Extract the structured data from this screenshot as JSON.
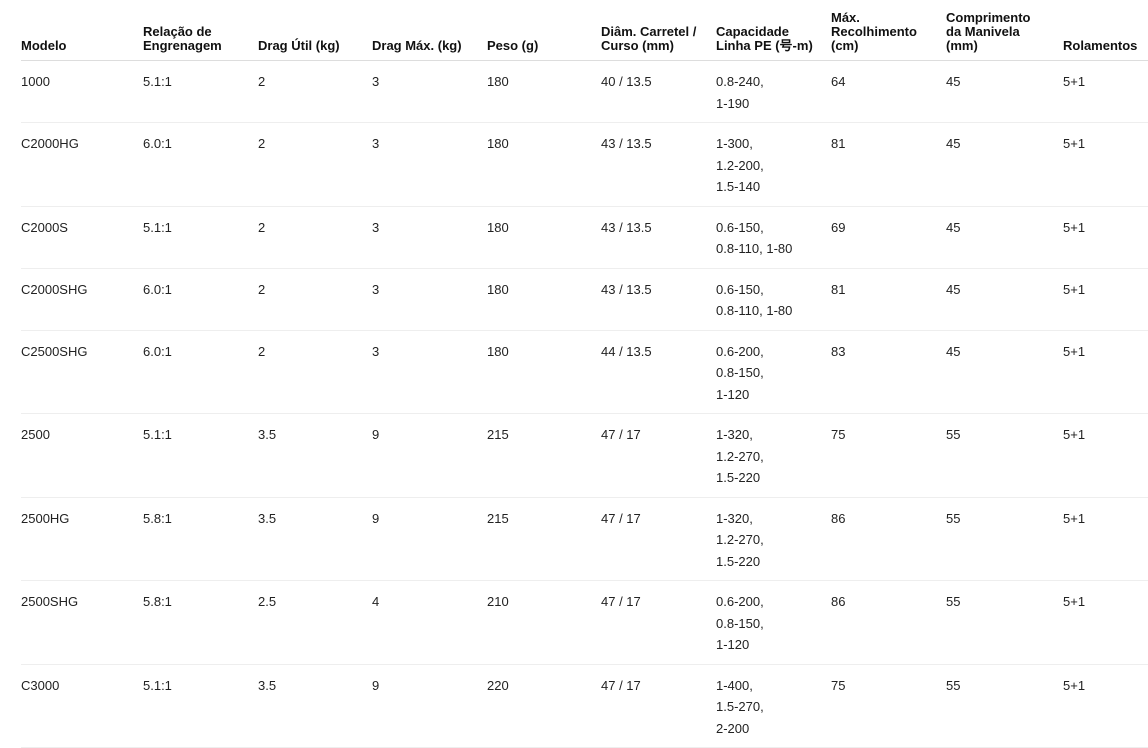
{
  "table": {
    "headers": [
      "Modelo",
      "Relação de Engrenagem",
      "Drag Útil (kg)",
      "Drag Máx. (kg)",
      "Peso (g)",
      "Diâm. Carretel / Curso (mm)",
      "Capacidade Linha PE (号-m)",
      "Máx. Recolhimento (cm)",
      "Comprimento da Manivela (mm)",
      "Rolamentos"
    ],
    "rows": [
      [
        "1000",
        "5.1:1",
        "2",
        "3",
        "180",
        "40 / 13.5",
        [
          "0.8-240,",
          "1-190"
        ],
        "64",
        "45",
        "5+1"
      ],
      [
        "C2000HG",
        "6.0:1",
        "2",
        "3",
        "180",
        "43 / 13.5",
        [
          "1-300,",
          "1.2-200,",
          "1.5-140"
        ],
        "81",
        "45",
        "5+1"
      ],
      [
        "C2000S",
        "5.1:1",
        "2",
        "3",
        "180",
        "43 / 13.5",
        [
          "0.6-150,",
          "0.8-110, 1-80"
        ],
        "69",
        "45",
        "5+1"
      ],
      [
        "C2000SHG",
        "6.0:1",
        "2",
        "3",
        "180",
        "43 / 13.5",
        [
          "0.6-150,",
          "0.8-110, 1-80"
        ],
        "81",
        "45",
        "5+1"
      ],
      [
        "C2500SHG",
        "6.0:1",
        "2",
        "3",
        "180",
        "44 / 13.5",
        [
          "0.6-200,",
          "0.8-150,",
          "1-120"
        ],
        "83",
        "45",
        "5+1"
      ],
      [
        "2500",
        "5.1:1",
        "3.5",
        "9",
        "215",
        "47 / 17",
        [
          "1-320,",
          "1.2-270,",
          "1.5-220"
        ],
        "75",
        "55",
        "5+1"
      ],
      [
        "2500HG",
        "5.8:1",
        "3.5",
        "9",
        "215",
        "47 / 17",
        [
          "1-320,",
          "1.2-270,",
          "1.5-220"
        ],
        "86",
        "55",
        "5+1"
      ],
      [
        "2500SHG",
        "5.8:1",
        "2.5",
        "4",
        "210",
        "47 / 17",
        [
          "0.6-200,",
          "0.8-150,",
          "1-120"
        ],
        "86",
        "55",
        "5+1"
      ],
      [
        "C3000",
        "5.1:1",
        "3.5",
        "9",
        "220",
        "47 / 17",
        [
          "1-400,",
          "1.5-270,",
          "2-200"
        ],
        "75",
        "55",
        "5+1"
      ]
    ]
  }
}
